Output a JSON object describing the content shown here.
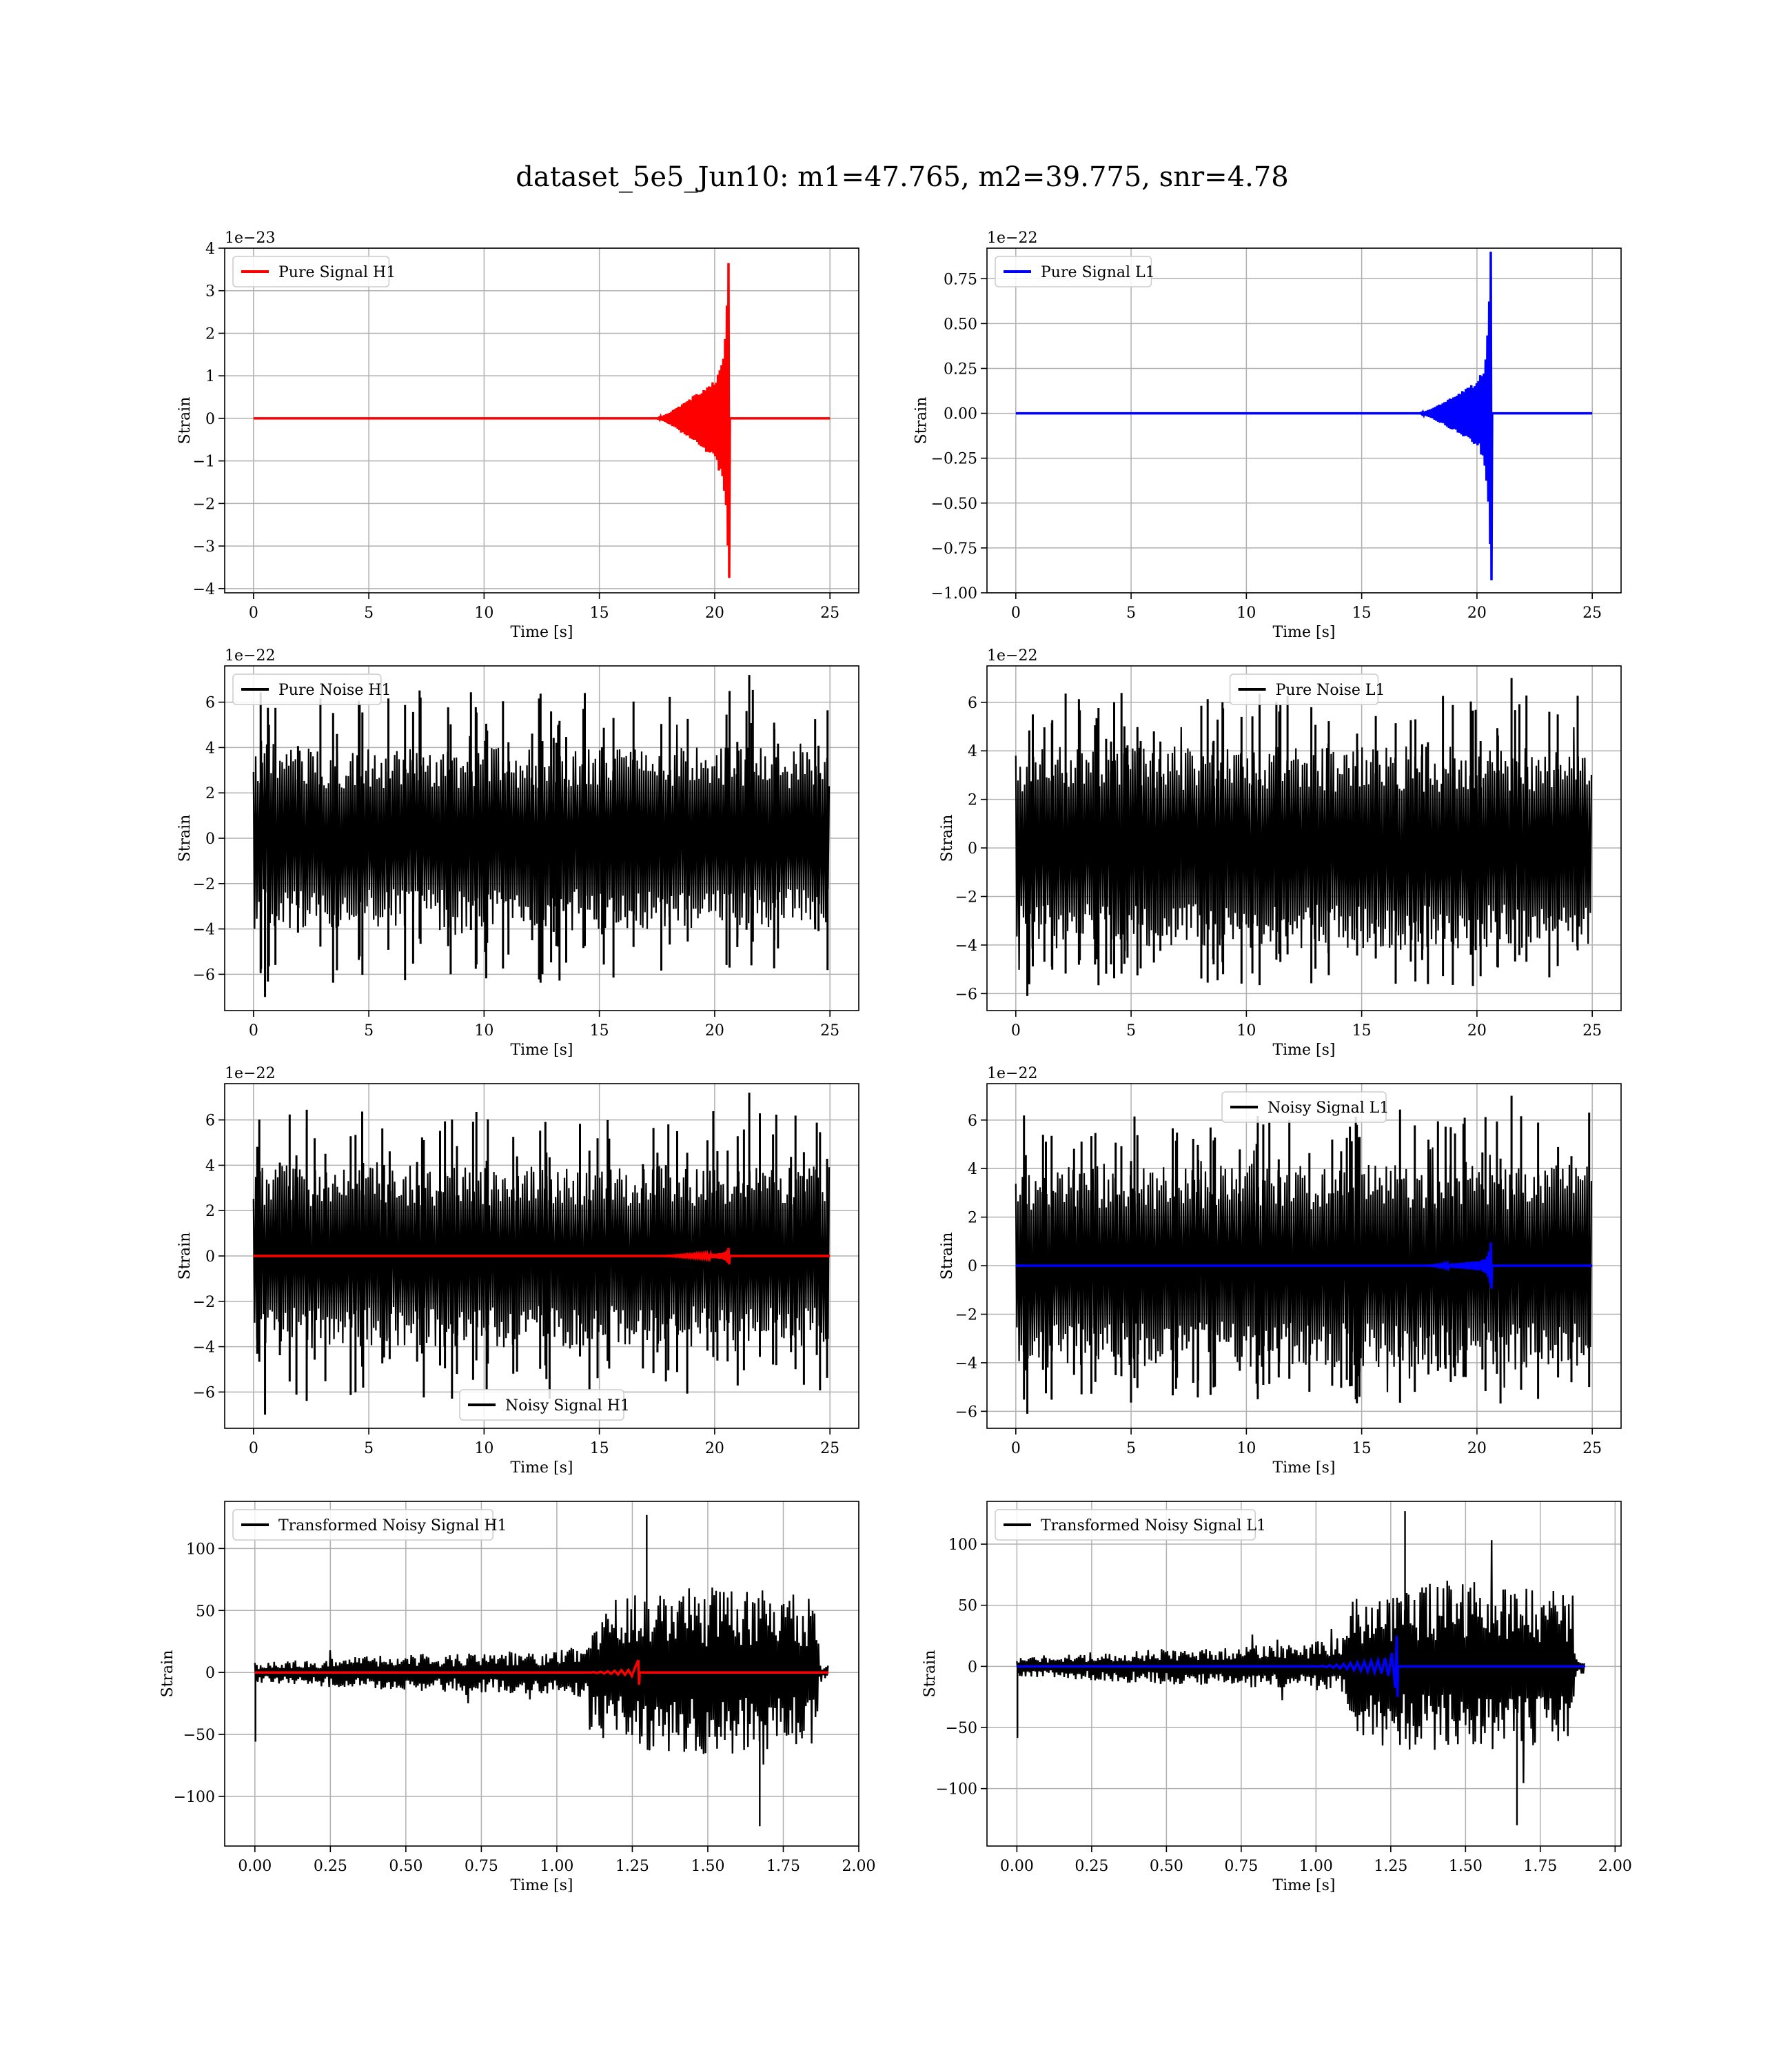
{
  "figure": {
    "title": "dataset_5e5_Jun10: m1=47.765, m2=39.775, snr=4.78"
  },
  "colors": {
    "h1_signal": "#ff0000",
    "l1_signal": "#0000ff",
    "noise": "#000000",
    "grid": "#b0b0b0"
  },
  "chart_data": [
    {
      "type": "line",
      "title": "",
      "xlabel": "Time [s]",
      "ylabel": "Strain",
      "offset_label": "1e−23",
      "xlim": [
        -1.25,
        26.25
      ],
      "ylim": [
        -4.1,
        4.0
      ],
      "xticks": [
        0,
        5,
        10,
        15,
        20,
        25
      ],
      "xtick_labels": [
        "0",
        "5",
        "10",
        "15",
        "20",
        "25"
      ],
      "yticks": [
        -4,
        -3,
        -2,
        -1,
        0,
        1,
        2,
        3,
        4
      ],
      "ytick_labels": [
        "−4",
        "−3",
        "−2",
        "−1",
        "0",
        "1",
        "2",
        "3",
        "4"
      ],
      "legend": {
        "position": "upper-left",
        "entries": [
          {
            "label": "Pure Signal H1",
            "color": "#ff0000"
          }
        ]
      },
      "series": [
        {
          "name": "Pure Signal H1",
          "color": "#ff0000",
          "kind": "chirp",
          "params": {
            "t_start": 0,
            "t_end": 25,
            "merger_t": 20.6,
            "onset": 17.5,
            "amp_early": 0.0,
            "amp_plateau": 1.2,
            "amp_peak": 3.65,
            "amp_min": -3.75
          }
        }
      ]
    },
    {
      "type": "line",
      "title": "",
      "xlabel": "Time [s]",
      "ylabel": "Strain",
      "offset_label": "1e−22",
      "xlim": [
        -1.25,
        26.25
      ],
      "ylim": [
        -1.0,
        0.92
      ],
      "xticks": [
        0,
        5,
        10,
        15,
        20,
        25
      ],
      "xtick_labels": [
        "0",
        "5",
        "10",
        "15",
        "20",
        "25"
      ],
      "yticks": [
        -1.0,
        -0.75,
        -0.5,
        -0.25,
        0.0,
        0.25,
        0.5,
        0.75
      ],
      "ytick_labels": [
        "−1.00",
        "−0.75",
        "−0.50",
        "−0.25",
        "0.00",
        "0.25",
        "0.50",
        "0.75"
      ],
      "legend": {
        "position": "upper-left",
        "entries": [
          {
            "label": "Pure Signal L1",
            "color": "#0000ff"
          }
        ]
      },
      "series": [
        {
          "name": "Pure Signal L1",
          "color": "#0000ff",
          "kind": "chirp",
          "params": {
            "t_start": 0,
            "t_end": 25,
            "merger_t": 20.6,
            "onset": 17.5,
            "amp_early": 0.0,
            "amp_plateau": 0.23,
            "amp_peak": 0.9,
            "amp_min": -0.93
          }
        }
      ]
    },
    {
      "type": "line",
      "title": "",
      "xlabel": "Time [s]",
      "ylabel": "Strain",
      "offset_label": "1e−22",
      "xlim": [
        -1.25,
        26.25
      ],
      "ylim": [
        -7.6,
        7.6
      ],
      "xticks": [
        0,
        5,
        10,
        15,
        20,
        25
      ],
      "xtick_labels": [
        "0",
        "5",
        "10",
        "15",
        "20",
        "25"
      ],
      "yticks": [
        -6,
        -4,
        -2,
        0,
        2,
        4,
        6
      ],
      "ytick_labels": [
        "−6",
        "−4",
        "−2",
        "0",
        "2",
        "4",
        "6"
      ],
      "legend": {
        "position": "upper-left",
        "entries": [
          {
            "label": "Pure Noise H1",
            "color": "#000000"
          }
        ]
      },
      "series": [
        {
          "name": "Pure Noise H1",
          "color": "#000000",
          "kind": "noise",
          "params": {
            "t_start": 0,
            "t_end": 25,
            "typ_max": 4.0,
            "typ_min": -4.0,
            "max": 7.2,
            "min": -7.0
          }
        }
      ]
    },
    {
      "type": "line",
      "title": "",
      "xlabel": "Time [s]",
      "ylabel": "Strain",
      "offset_label": "1e−22",
      "xlim": [
        -1.25,
        26.25
      ],
      "ylim": [
        -6.7,
        7.5
      ],
      "xticks": [
        0,
        5,
        10,
        15,
        20,
        25
      ],
      "xtick_labels": [
        "0",
        "5",
        "10",
        "15",
        "20",
        "25"
      ],
      "yticks": [
        -6,
        -4,
        -2,
        0,
        2,
        4,
        6
      ],
      "ytick_labels": [
        "−6",
        "−4",
        "−2",
        "0",
        "2",
        "4",
        "6"
      ],
      "legend": {
        "position": "upper-center",
        "entries": [
          {
            "label": "Pure Noise L1",
            "color": "#000000"
          }
        ]
      },
      "series": [
        {
          "name": "Pure Noise L1",
          "color": "#000000",
          "kind": "noise",
          "params": {
            "t_start": 0,
            "t_end": 25,
            "typ_max": 4.2,
            "typ_min": -4.2,
            "max": 7.0,
            "min": -6.1
          }
        }
      ]
    },
    {
      "type": "line",
      "title": "",
      "xlabel": "Time [s]",
      "ylabel": "Strain",
      "offset_label": "1e−22",
      "xlim": [
        -1.25,
        26.25
      ],
      "ylim": [
        -7.6,
        7.6
      ],
      "xticks": [
        0,
        5,
        10,
        15,
        20,
        25
      ],
      "xtick_labels": [
        "0",
        "5",
        "10",
        "15",
        "20",
        "25"
      ],
      "yticks": [
        -6,
        -4,
        -2,
        0,
        2,
        4,
        6
      ],
      "ytick_labels": [
        "−6",
        "−4",
        "−2",
        "0",
        "2",
        "4",
        "6"
      ],
      "legend": {
        "position": "lower-center",
        "entries": [
          {
            "label": "Noisy Signal H1",
            "color": "#000000"
          }
        ]
      },
      "series": [
        {
          "name": "Noisy Signal H1",
          "color": "#000000",
          "kind": "noise",
          "params": {
            "t_start": 0,
            "t_end": 25,
            "typ_max": 4.0,
            "typ_min": -4.0,
            "max": 7.2,
            "min": -7.0
          }
        },
        {
          "color": "#ff0000",
          "kind": "chirp",
          "params": {
            "t_start": 0,
            "t_end": 25,
            "merger_t": 20.6,
            "onset": 17.5,
            "amp_early": 0.0,
            "amp_plateau": 0.12,
            "amp_peak": 0.36,
            "amp_min": -0.37
          }
        }
      ]
    },
    {
      "type": "line",
      "title": "",
      "xlabel": "Time [s]",
      "ylabel": "Strain",
      "offset_label": "1e−22",
      "xlim": [
        -1.25,
        26.25
      ],
      "ylim": [
        -6.7,
        7.5
      ],
      "xticks": [
        0,
        5,
        10,
        15,
        20,
        25
      ],
      "xtick_labels": [
        "0",
        "5",
        "10",
        "15",
        "20",
        "25"
      ],
      "yticks": [
        -6,
        -4,
        -2,
        0,
        2,
        4,
        6
      ],
      "ytick_labels": [
        "−6",
        "−4",
        "−2",
        "0",
        "2",
        "4",
        "6"
      ],
      "legend": {
        "position": "upper-center",
        "entries": [
          {
            "label": "Noisy Signal L1",
            "color": "#000000"
          }
        ]
      },
      "series": [
        {
          "name": "Noisy Signal L1",
          "color": "#000000",
          "kind": "noise",
          "params": {
            "t_start": 0,
            "t_end": 25,
            "typ_max": 4.2,
            "typ_min": -4.2,
            "max": 7.0,
            "min": -6.1
          }
        },
        {
          "color": "#0000ff",
          "kind": "chirp",
          "params": {
            "t_start": 0,
            "t_end": 25,
            "merger_t": 20.6,
            "onset": 17.8,
            "amp_early": 0.0,
            "amp_plateau": 0.25,
            "amp_peak": 0.95,
            "amp_min": -0.95
          }
        }
      ]
    },
    {
      "type": "line",
      "title": "",
      "xlabel": "Time [s]",
      "ylabel": "Strain",
      "offset_label": "",
      "xlim": [
        -0.1,
        2.0
      ],
      "ylim": [
        -140,
        138
      ],
      "xticks": [
        0.0,
        0.25,
        0.5,
        0.75,
        1.0,
        1.25,
        1.5,
        1.75,
        2.0
      ],
      "xtick_labels": [
        "0.00",
        "0.25",
        "0.50",
        "0.75",
        "1.00",
        "1.25",
        "1.50",
        "1.75",
        "2.00"
      ],
      "yticks": [
        -100,
        -50,
        0,
        50,
        100
      ],
      "ytick_labels": [
        "−100",
        "−50",
        "0",
        "50",
        "100"
      ],
      "legend": {
        "position": "upper-left",
        "entries": [
          {
            "label": "Transformed Noisy Signal H1",
            "color": "#000000"
          }
        ]
      },
      "series": [
        {
          "name": "Transformed Noisy Signal H1",
          "color": "#000000",
          "kind": "envelope_noise",
          "params": {
            "t_start": 0,
            "t_end": 1.9,
            "segments": [
              [
                0.0,
                8
              ],
              [
                0.4,
                14
              ],
              [
                0.7,
                16
              ],
              [
                1.0,
                18
              ],
              [
                1.1,
                22
              ],
              [
                1.11,
                55
              ],
              [
                1.3,
                65
              ],
              [
                1.5,
                70
              ],
              [
                1.75,
                65
              ],
              [
                1.86,
                60
              ],
              [
                1.87,
                6
              ],
              [
                1.9,
                6
              ]
            ],
            "max": 127,
            "min": -124
          }
        },
        {
          "color": "#ff0000",
          "kind": "chirp",
          "params": {
            "t_start": 0,
            "t_end": 1.9,
            "merger_t": 1.27,
            "onset": 1.1,
            "amp_early": 0.0,
            "amp_plateau": 3,
            "amp_peak": 10,
            "amp_min": -10
          }
        }
      ]
    },
    {
      "type": "line",
      "title": "",
      "xlabel": "Time [s]",
      "ylabel": "Strain",
      "offset_label": "",
      "xlim": [
        -0.1,
        2.02
      ],
      "ylim": [
        -147,
        135
      ],
      "xticks": [
        0.0,
        0.25,
        0.5,
        0.75,
        1.0,
        1.25,
        1.5,
        1.75,
        2.0
      ],
      "xtick_labels": [
        "0.00",
        "0.25",
        "0.50",
        "0.75",
        "1.00",
        "1.25",
        "1.50",
        "1.75",
        "2.00"
      ],
      "yticks": [
        -100,
        -50,
        0,
        50,
        100
      ],
      "ytick_labels": [
        "−100",
        "−50",
        "0",
        "50",
        "100"
      ],
      "legend": {
        "position": "upper-left",
        "entries": [
          {
            "label": "Transformed Noisy Signal L1",
            "color": "#000000"
          }
        ]
      },
      "series": [
        {
          "name": "Transformed Noisy Signal L1",
          "color": "#000000",
          "kind": "envelope_noise",
          "params": {
            "t_start": 0,
            "t_end": 1.9,
            "segments": [
              [
                0.0,
                8
              ],
              [
                0.4,
                14
              ],
              [
                0.7,
                16
              ],
              [
                0.95,
                20
              ],
              [
                1.1,
                24
              ],
              [
                1.11,
                55
              ],
              [
                1.3,
                68
              ],
              [
                1.5,
                72
              ],
              [
                1.75,
                65
              ],
              [
                1.86,
                60
              ],
              [
                1.87,
                6
              ],
              [
                1.9,
                6
              ]
            ],
            "max": 127,
            "min": -130
          }
        },
        {
          "color": "#0000ff",
          "kind": "chirp",
          "params": {
            "t_start": 0,
            "t_end": 1.9,
            "merger_t": 1.27,
            "onset": 1.0,
            "amp_early": 0.0,
            "amp_plateau": 8,
            "amp_peak": 25,
            "amp_min": -25
          }
        }
      ]
    }
  ]
}
